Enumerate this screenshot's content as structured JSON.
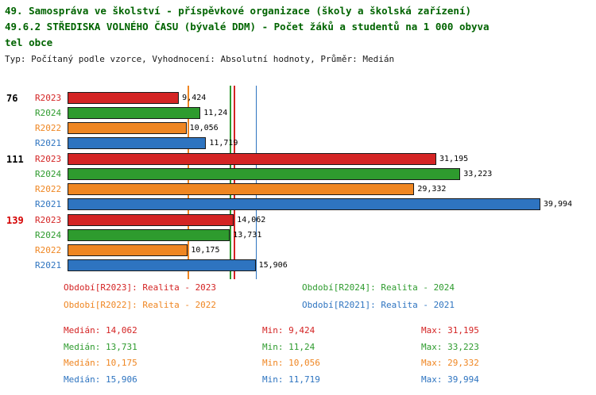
{
  "header": {
    "line1": "49. Samospráva ve školství - příspěvkové organizace (školy a školská zařízení)",
    "line2": "49.6.2 STŘEDISKA VOLNÉHO ČASU (bývalé DDM) - Počet žáků a studentů na 1 000 obyva",
    "line3": "tel obce",
    "subtitle": "Typ: Počítaný podle vzorce, Vyhodnocení: Absolutní hodnoty, Průměr: Medián"
  },
  "colors": {
    "r2023": "#d42424",
    "r2024": "#2e9b2e",
    "r2022": "#ef8622",
    "r2021": "#2e74c0",
    "title": "#006400",
    "group_label": "#000000",
    "group_label_highlight": "#d40000",
    "value_text": "#000000"
  },
  "chart_data": {
    "type": "bar",
    "orientation": "horizontal",
    "title": "49.6.2 STŘEDISKA VOLNÉHO ČASU (bývalé DDM) - Počet žáků a studentů na 1 000 obyvatel obce",
    "value_axis": {
      "min": 0,
      "max": 40,
      "gridlines": false
    },
    "series_order": [
      "R2023",
      "R2024",
      "R2022",
      "R2021"
    ],
    "groups": [
      {
        "label": "76",
        "highlight": false,
        "bars": [
          {
            "series": "R2023",
            "value": 9.424,
            "display": "9,424"
          },
          {
            "series": "R2024",
            "value": 11.24,
            "display": "11,24"
          },
          {
            "series": "R2022",
            "value": 10.056,
            "display": "10,056"
          },
          {
            "series": "R2021",
            "value": 11.719,
            "display": "11,719"
          }
        ]
      },
      {
        "label": "111",
        "highlight": false,
        "bars": [
          {
            "series": "R2023",
            "value": 31.195,
            "display": "31,195"
          },
          {
            "series": "R2024",
            "value": 33.223,
            "display": "33,223"
          },
          {
            "series": "R2022",
            "value": 29.332,
            "display": "29,332"
          },
          {
            "series": "R2021",
            "value": 39.994,
            "display": "39,994"
          }
        ]
      },
      {
        "label": "139",
        "highlight": true,
        "bars": [
          {
            "series": "R2023",
            "value": 14.062,
            "display": "14,062"
          },
          {
            "series": "R2024",
            "value": 13.731,
            "display": "13,731"
          },
          {
            "series": "R2022",
            "value": 10.175,
            "display": "10,175"
          },
          {
            "series": "R2021",
            "value": 15.906,
            "display": "15,906"
          }
        ]
      }
    ],
    "median_lines": [
      {
        "series": "R2023",
        "value": 14.062
      },
      {
        "series": "R2024",
        "value": 13.731
      },
      {
        "series": "R2022",
        "value": 10.175
      },
      {
        "series": "R2021",
        "value": 15.906
      }
    ]
  },
  "legend": {
    "items": [
      {
        "series": "R2023",
        "label": "Období[R2023]: Realita - 2023",
        "column": 0
      },
      {
        "series": "R2024",
        "label": "Období[R2024]: Realita - 2024",
        "column": 1
      },
      {
        "series": "R2022",
        "label": "Období[R2022]: Realita - 2022",
        "column": 0
      },
      {
        "series": "R2021",
        "label": "Období[R2021]: Realita - 2021",
        "column": 1
      }
    ]
  },
  "stats": {
    "rows": [
      {
        "series": "R2023",
        "median": "Medián: 14,062",
        "min": "Min: 9,424",
        "max": "Max: 31,195"
      },
      {
        "series": "R2024",
        "median": "Medián: 13,731",
        "min": "Min: 11,24",
        "max": "Max: 33,223"
      },
      {
        "series": "R2022",
        "median": "Medián: 10,175",
        "min": "Min: 10,056",
        "max": "Max: 29,332"
      },
      {
        "series": "R2021",
        "median": "Medián: 15,906",
        "min": "Min: 11,719",
        "max": "Max: 39,994"
      }
    ]
  }
}
